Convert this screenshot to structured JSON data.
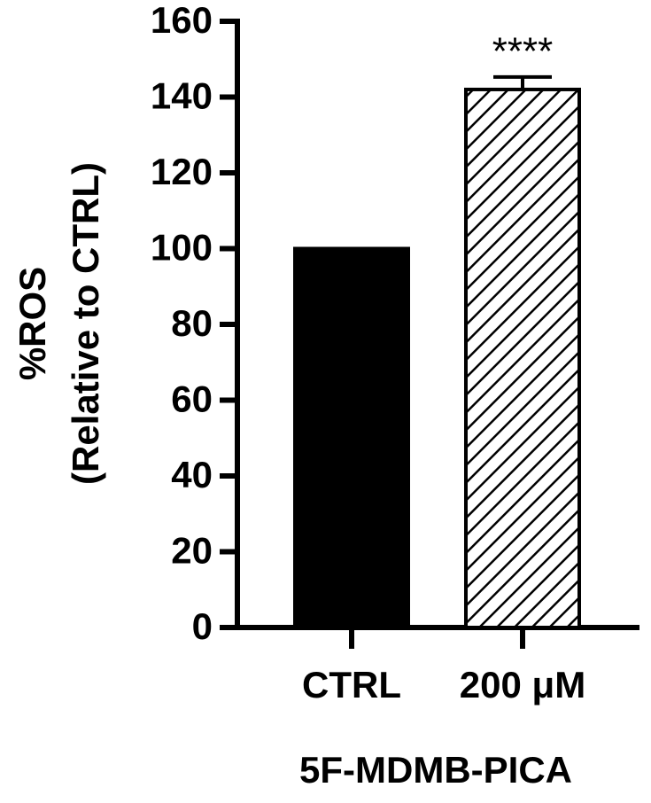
{
  "chart_data": {
    "type": "bar",
    "y_label": [
      "%ROS",
      "(Relative to CTRL)"
    ],
    "x_label": "5F-MDMB-PICA",
    "categories": [
      "CTRL",
      "200 μM"
    ],
    "values": [
      100,
      142
    ],
    "errors": [
      null,
      3.3
    ],
    "colors": [
      "#000000",
      "#000000"
    ],
    "patterns": [
      "solid",
      "hatch"
    ],
    "annotations": [
      {
        "text": "****",
        "category": "200 μM"
      }
    ],
    "ylim": [
      0,
      160
    ],
    "yticks": [
      0,
      20,
      40,
      60,
      80,
      100,
      120,
      140,
      160
    ],
    "grid": false
  }
}
